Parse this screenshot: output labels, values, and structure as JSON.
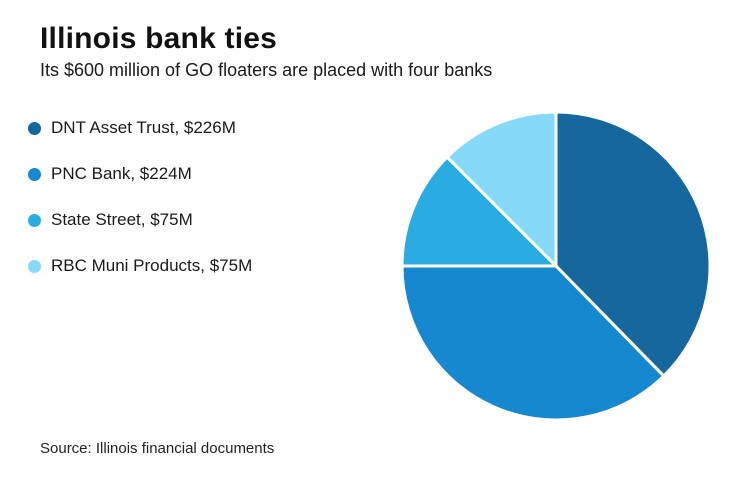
{
  "header": {
    "title": "Illinois bank ties",
    "subtitle": "Its $600 million of GO floaters are placed with four banks"
  },
  "footer": {
    "source": "Source: Illinois financial documents"
  },
  "chart_data": {
    "type": "pie",
    "title": "Illinois bank ties",
    "subtitle": "Its $600 million of GO floaters are placed with four banks",
    "unit": "USD millions",
    "total": 600,
    "start_angle_deg": 0,
    "direction": "clockwise",
    "legend_position": "left",
    "slice_gap_color": "#ffffff",
    "slices": [
      {
        "label": "DNT Asset Trust",
        "value": 226,
        "legend": "DNT Asset Trust, $226M",
        "color": "#16679e"
      },
      {
        "label": "PNC Bank",
        "value": 224,
        "legend": "PNC Bank, $224M",
        "color": "#1588d0"
      },
      {
        "label": "State Street",
        "value": 75,
        "legend": "State Street, $75M",
        "color": "#2aabe2"
      },
      {
        "label": "RBC Muni Products",
        "value": 75,
        "legend": "RBC Muni Products, $75M",
        "color": "#86d9f8"
      }
    ],
    "source": "Source: Illinois financial documents"
  }
}
